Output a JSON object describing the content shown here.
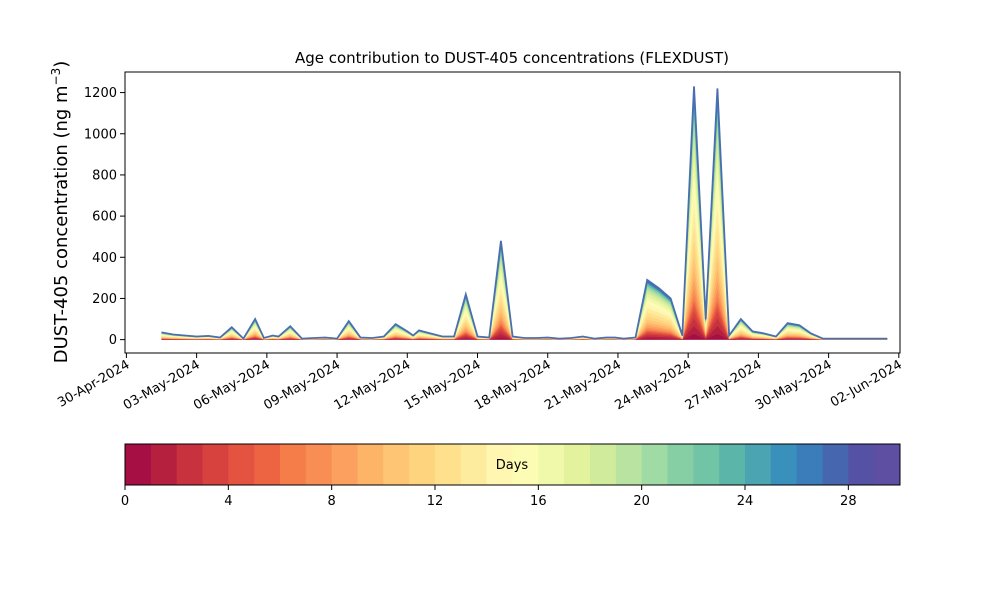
{
  "chart_data": {
    "type": "area",
    "title": "Age contribution to DUST-405 concentrations (FLEXDUST)",
    "xlabel": "",
    "ylabel": "DUST-405 concentration (ng m",
    "ylabel_exp": "−3",
    "ylabel_close": ")",
    "xlim": [
      "2024-04-30",
      "2024-06-02"
    ],
    "ylim": [
      -65,
      1300
    ],
    "y_ticks": [
      0,
      200,
      400,
      600,
      800,
      1000,
      1200
    ],
    "x_ticks": [
      "30-Apr-2024",
      "03-May-2024",
      "06-May-2024",
      "09-May-2024",
      "12-May-2024",
      "15-May-2024",
      "18-May-2024",
      "21-May-2024",
      "24-May-2024",
      "27-May-2024",
      "30-May-2024",
      "02-Jun-2024"
    ],
    "grid": false,
    "stacking": "stacked by age (days)",
    "total_series": {
      "name": "",
      "x": [
        "2024-05-01 12:00",
        "2024-05-02 00:00",
        "2024-05-02 12:00",
        "2024-05-03 00:00",
        "2024-05-03 12:00",
        "2024-05-04 00:00",
        "2024-05-04 12:00",
        "2024-05-05 00:00",
        "2024-05-05 12:00",
        "2024-05-05 21:00",
        "2024-05-06 06:00",
        "2024-05-06 12:00",
        "2024-05-07 00:00",
        "2024-05-07 12:00",
        "2024-05-08 00:00",
        "2024-05-08 12:00",
        "2024-05-09 00:00",
        "2024-05-09 12:00",
        "2024-05-10 00:00",
        "2024-05-10 12:00",
        "2024-05-11 00:00",
        "2024-05-11 12:00",
        "2024-05-12 00:00",
        "2024-05-12 06:00",
        "2024-05-12 12:00",
        "2024-05-13 00:00",
        "2024-05-13 12:00",
        "2024-05-14 00:00",
        "2024-05-14 12:00",
        "2024-05-15 00:00",
        "2024-05-15 12:00",
        "2024-05-16 00:00",
        "2024-05-16 12:00",
        "2024-05-17 00:00",
        "2024-05-17 12:00",
        "2024-05-18 00:00",
        "2024-05-18 12:00",
        "2024-05-19 00:00",
        "2024-05-19 12:00",
        "2024-05-20 00:00",
        "2024-05-20 12:00",
        "2024-05-20 21:00",
        "2024-05-21 06:00",
        "2024-05-21 18:00",
        "2024-05-22 06:00",
        "2024-05-22 18:00",
        "2024-05-23 06:00",
        "2024-05-23 18:00",
        "2024-05-24 06:00",
        "2024-05-24 18:00",
        "2024-05-25 06:00",
        "2024-05-25 18:00",
        "2024-05-26 06:00",
        "2024-05-26 18:00",
        "2024-05-27 06:00",
        "2024-05-27 18:00",
        "2024-05-28 06:00",
        "2024-05-28 18:00",
        "2024-05-29 06:00",
        "2024-05-29 18:00",
        "2024-05-30 00:00",
        "2024-05-30 06:00",
        "2024-05-30 12:00",
        "2024-05-30 18:00",
        "2024-05-31 00:00",
        "2024-05-31 06:00",
        "2024-05-31 12:00",
        "2024-05-31 18:00",
        "2024-06-01 00:00",
        "2024-06-01 06:00",
        "2024-06-01 12:00"
      ],
      "values": [
        35,
        25,
        20,
        15,
        18,
        10,
        60,
        5,
        100,
        8,
        20,
        15,
        65,
        5,
        8,
        10,
        5,
        90,
        10,
        8,
        15,
        75,
        40,
        20,
        45,
        30,
        15,
        15,
        220,
        15,
        10,
        480,
        15,
        8,
        8,
        10,
        5,
        8,
        15,
        5,
        10,
        10,
        5,
        10,
        290,
        250,
        200,
        20,
        1230,
        100,
        1220,
        20,
        100,
        40,
        30,
        15,
        80,
        70,
        30,
        5,
        5,
        5,
        5,
        5,
        5,
        5,
        5,
        5,
        5,
        5,
        5
      ]
    },
    "colorbar": {
      "label": "Days",
      "range": [
        0,
        30
      ],
      "bins": 30,
      "ticks": [
        0,
        4,
        8,
        12,
        16,
        20,
        24,
        28
      ],
      "colors": [
        "#a50f44",
        "#b5203f",
        "#c8313e",
        "#d8423e",
        "#e3533f",
        "#ed6443",
        "#f57d4a",
        "#f88e54",
        "#fba05e",
        "#fdb467",
        "#fdc574",
        "#fed47e",
        "#fee08d",
        "#feec9e",
        "#fff7b1",
        "#fcfcb4",
        "#f0f8a9",
        "#e3f29c",
        "#d0eb9c",
        "#b9e3a1",
        "#a0daa4",
        "#86cfa5",
        "#71c4a5",
        "#5cb5a9",
        "#4aa4b1",
        "#3890bb",
        "#3a7dba",
        "#4667af",
        "#5551a4",
        "#5e4fa2"
      ]
    }
  }
}
